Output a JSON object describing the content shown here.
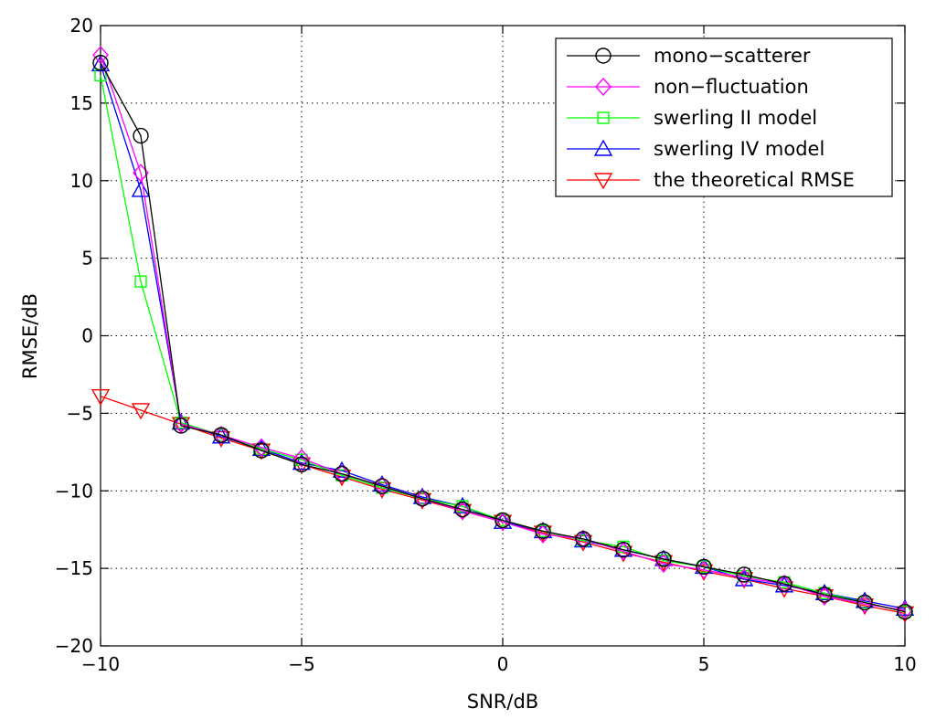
{
  "chart_data": {
    "type": "line",
    "title": "",
    "xlabel": "SNR/dB",
    "ylabel": "RMSE/dB",
    "xlim": [
      -10,
      10
    ],
    "ylim": [
      -20,
      20
    ],
    "xticks": [
      -10,
      -5,
      0,
      5,
      10
    ],
    "yticks": [
      -20,
      -15,
      -10,
      -5,
      0,
      5,
      10,
      15,
      20
    ],
    "xtick_labels": [
      "−10",
      "−5",
      "0",
      "5",
      "10"
    ],
    "ytick_labels": [
      "−20",
      "−15",
      "−10",
      "−5",
      "0",
      "5",
      "10",
      "15",
      "20"
    ],
    "grid": true,
    "legend_position": "top-right",
    "x": [
      -10,
      -9,
      -8,
      -7,
      -6,
      -5,
      -4,
      -3,
      -2,
      -1,
      0,
      1,
      2,
      3,
      4,
      5,
      6,
      7,
      8,
      9,
      10
    ],
    "series": [
      {
        "name": "mono−scatterer",
        "color": "#000000",
        "marker": "circle",
        "values": [
          17.6,
          12.9,
          -5.8,
          -6.4,
          -7.4,
          -8.3,
          -8.9,
          -9.7,
          -10.5,
          -11.2,
          -11.9,
          -12.6,
          -13.1,
          -13.8,
          -14.4,
          -14.9,
          -15.4,
          -16.0,
          -16.7,
          -17.2,
          -17.8
        ]
      },
      {
        "name": "non−fluctuation",
        "color": "#ff00ff",
        "marker": "diamond",
        "values": [
          18.1,
          10.5,
          -5.7,
          -6.4,
          -7.2,
          -7.9,
          -8.9,
          -9.7,
          -10.5,
          -11.3,
          -12.0,
          -12.8,
          -13.1,
          -13.9,
          -14.7,
          -15.1,
          -15.6,
          -16.0,
          -16.8,
          -17.3,
          -17.7
        ]
      },
      {
        "name": "swerling II model",
        "color": "#00ff00",
        "marker": "square",
        "values": [
          16.8,
          3.5,
          -5.6,
          -6.4,
          -7.3,
          -8.0,
          -9.0,
          -9.8,
          -10.5,
          -11.0,
          -11.9,
          -12.6,
          -13.2,
          -13.6,
          -14.5,
          -14.9,
          -15.5,
          -15.9,
          -16.6,
          -17.2,
          -17.8
        ]
      },
      {
        "name": "swerling IV model",
        "color": "#0000ff",
        "marker": "triangle-up",
        "values": [
          17.5,
          9.4,
          -5.6,
          -6.5,
          -7.3,
          -8.2,
          -8.7,
          -9.6,
          -10.4,
          -11.0,
          -12.0,
          -12.6,
          -13.2,
          -13.8,
          -14.4,
          -14.9,
          -15.7,
          -16.1,
          -16.6,
          -17.1,
          -17.6
        ]
      },
      {
        "name": "the theoretical RMSE",
        "color": "#ff0000",
        "marker": "triangle-down",
        "values": [
          -3.9,
          -4.8,
          -5.7,
          -6.6,
          -7.4,
          -8.3,
          -9.1,
          -9.9,
          -10.6,
          -11.3,
          -12.0,
          -12.7,
          -13.3,
          -14.0,
          -14.6,
          -15.2,
          -15.7,
          -16.3,
          -16.8,
          -17.4,
          -17.9
        ]
      }
    ]
  }
}
